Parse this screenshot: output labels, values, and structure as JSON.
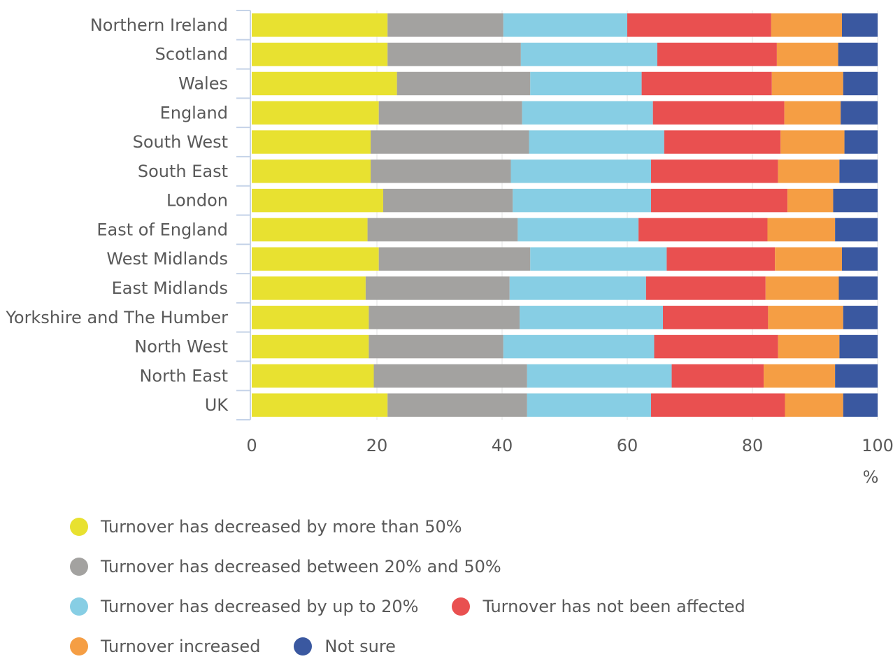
{
  "chart_data": {
    "type": "bar",
    "orientation": "horizontal",
    "stacked": true,
    "categories": [
      "Northern Ireland",
      "Scotland",
      "Wales",
      "England",
      "South West",
      "South East",
      "London",
      "East of England",
      "West Midlands",
      "East Midlands",
      "Yorkshire and The Humber",
      "North West",
      "North East",
      "UK"
    ],
    "series": [
      {
        "name": "Turnover has decreased by more than 50%",
        "color": "#e8e130",
        "values": [
          21.7,
          21.7,
          23.2,
          20.3,
          19.0,
          19.0,
          21.0,
          18.5,
          20.3,
          18.2,
          18.7,
          18.7,
          19.5,
          21.7
        ]
      },
      {
        "name": "Turnover has decreased between 20% and 50%",
        "color": "#a3a2a0",
        "values": [
          18.5,
          21.3,
          21.3,
          22.9,
          25.3,
          22.4,
          20.7,
          24.0,
          24.2,
          23.0,
          24.1,
          21.5,
          24.5,
          22.3
        ]
      },
      {
        "name": "Turnover has decreased by up to 20%",
        "color": "#87cee4",
        "values": [
          19.8,
          21.8,
          17.8,
          20.9,
          21.6,
          22.4,
          22.1,
          19.3,
          21.8,
          21.8,
          22.9,
          24.1,
          23.1,
          19.8
        ]
      },
      {
        "name": "Turnover has not been affected",
        "color": "#e95050",
        "values": [
          23.0,
          19.1,
          20.8,
          21.0,
          18.6,
          20.3,
          21.8,
          20.6,
          17.3,
          19.1,
          16.8,
          19.8,
          14.7,
          21.4
        ]
      },
      {
        "name": "Turnover increased",
        "color": "#f59e44",
        "values": [
          11.3,
          9.8,
          11.4,
          9.0,
          10.2,
          9.8,
          7.3,
          10.8,
          10.7,
          11.7,
          12.0,
          9.8,
          11.4,
          9.3
        ]
      },
      {
        "name": "Not sure",
        "color": "#3a58a0",
        "values": [
          5.7,
          6.3,
          5.5,
          5.9,
          5.3,
          6.1,
          7.1,
          6.8,
          5.7,
          6.2,
          5.5,
          6.1,
          6.8,
          5.5
        ]
      }
    ],
    "xlim": [
      0,
      100
    ],
    "xticks": [
      "0",
      "20",
      "40",
      "60",
      "80",
      "100"
    ],
    "xlabel": "%",
    "ylabel": "",
    "title": "",
    "grid": "vertical",
    "legend_position": "bottom"
  }
}
